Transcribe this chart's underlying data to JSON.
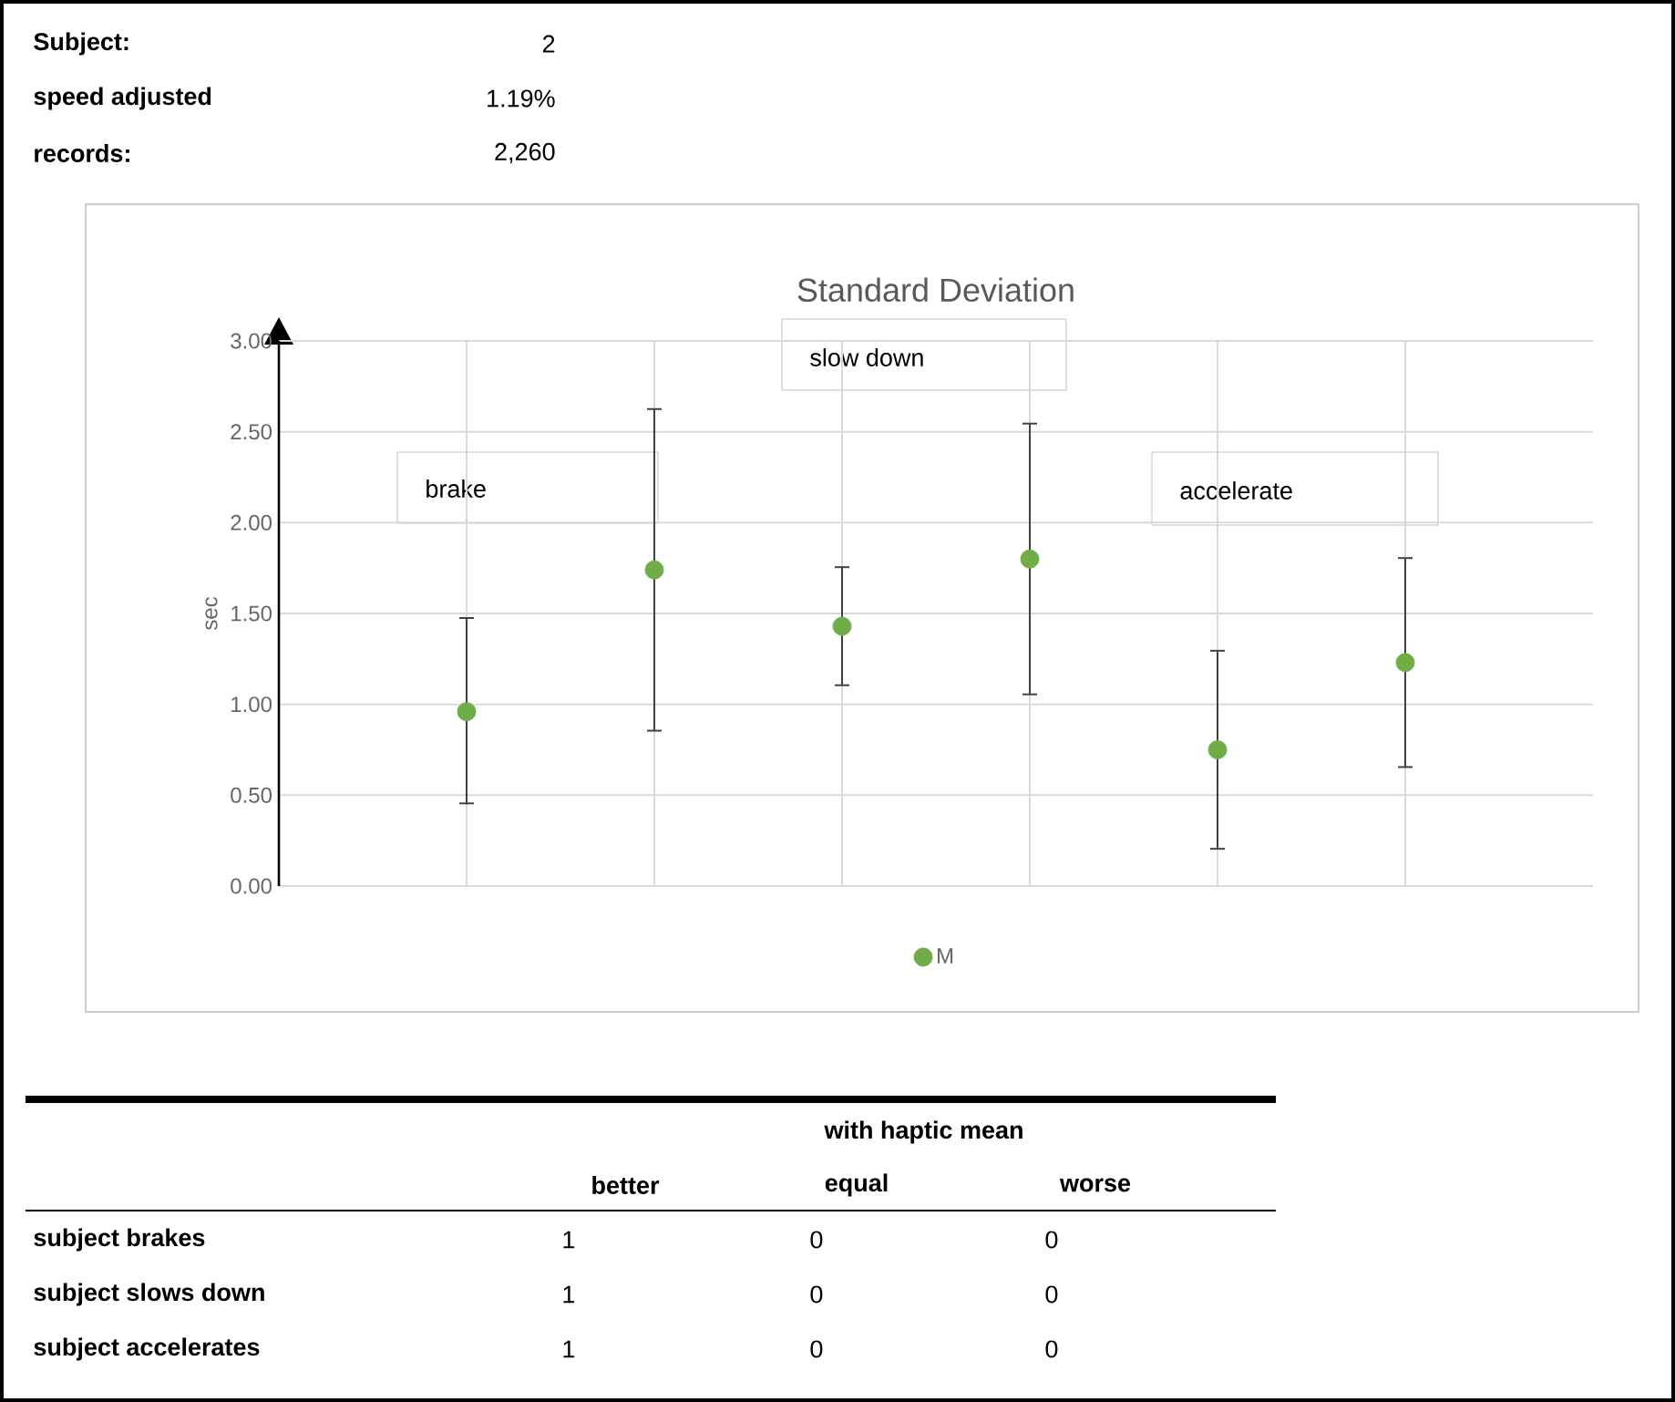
{
  "chart_data": {
    "type": "scatter",
    "title": "Standard Deviation",
    "ylabel": "sec",
    "categories": [
      null,
      null,
      null,
      null,
      null,
      null
    ],
    "series": [
      {
        "name": "M",
        "color": "#70ad47",
        "values": [
          0.96,
          1.74,
          1.43,
          1.8,
          0.75,
          1.23
        ],
        "errors": [
          [
            0.45,
            1.48
          ],
          [
            0.85,
            2.63
          ],
          [
            1.1,
            1.76
          ],
          [
            1.05,
            2.55
          ],
          [
            0.2,
            1.3
          ],
          [
            0.65,
            1.81
          ]
        ]
      }
    ],
    "ylim": [
      0,
      3
    ],
    "yticks": [
      {
        "value": 0,
        "label": "0.00"
      },
      {
        "value": 0.5,
        "label": "0.50"
      },
      {
        "value": 1,
        "label": "1.00"
      },
      {
        "value": 1.5,
        "label": "1.50"
      },
      {
        "value": 2,
        "label": "2.00"
      },
      {
        "value": 2.5,
        "label": "2.50"
      },
      {
        "value": 3,
        "label": "3.00"
      }
    ],
    "grid": true,
    "legend": "bottom",
    "marker": "circle",
    "annotations": [
      "Subject:",
      "2",
      "speed adjusted",
      "1.19%",
      "records:",
      "2,260",
      "brake",
      "slow down",
      "accelerate",
      "with haptic mean",
      "better",
      "equal",
      "worse",
      "subject brakes",
      "1",
      "0",
      "0",
      "subject slows down",
      "1",
      "0",
      "0",
      "subject accelerates",
      "1",
      "0",
      "0"
    ]
  }
}
